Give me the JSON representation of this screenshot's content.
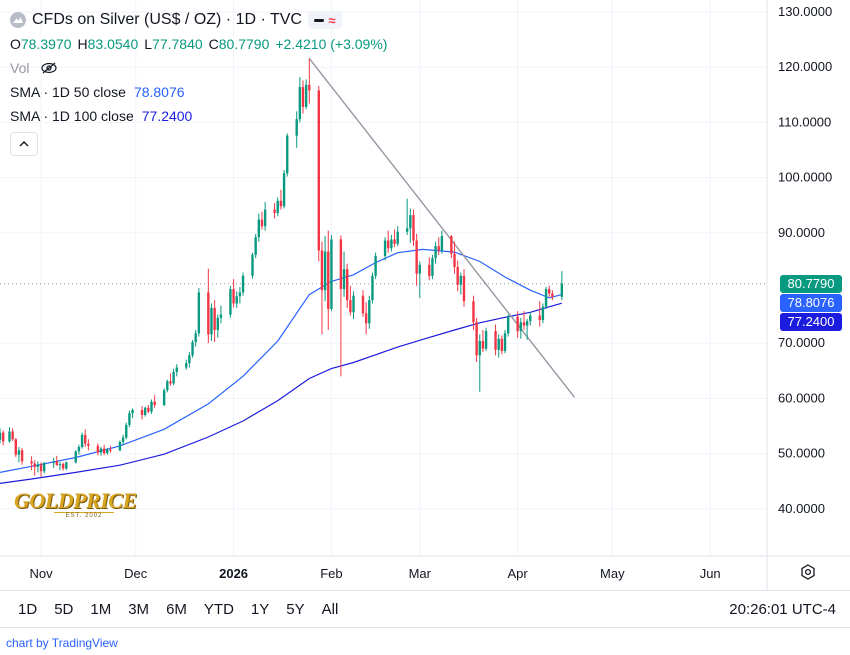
{
  "header": {
    "title": "CFDs on Silver (US$ / OZ) · 1D · TVC",
    "ohlc": [
      {
        "k": "O",
        "v": "78.3970"
      },
      {
        "k": "H",
        "v": "83.0540"
      },
      {
        "k": "L",
        "v": "77.7840"
      },
      {
        "k": "C",
        "v": "80.7790"
      },
      {
        "k": "",
        "v": "+2.4210 (+3.09%)"
      }
    ],
    "volume_label": "Vol",
    "sma50_label": "SMA · 1D 50 close",
    "sma50_value": "78.8076",
    "sma100_label": "SMA · 1D 100 close",
    "sma100_value": "77.2400",
    "icons": [
      "chart-logo-icon",
      "line-style-icon",
      "eye-off-icon",
      "chevron-up-icon"
    ]
  },
  "price_tags": {
    "close": "80.7790",
    "sma50": "78.8076",
    "sma100": "77.2400",
    "close_color": "#089981",
    "sma50_color": "#2962ff",
    "sma100_color": "#1c1cde"
  },
  "logo": {
    "main": "GOLDPRICE",
    "sub": "EST. 2002"
  },
  "toolbar": {
    "ranges": [
      "1D",
      "5D",
      "1M",
      "3M",
      "6M",
      "YTD",
      "1Y",
      "5Y",
      "All"
    ],
    "time": "20:26:01 UTC-4"
  },
  "footer": {
    "text": "chart by TradingView"
  },
  "chart_data": {
    "type": "candlestick",
    "title": "CFDs on Silver (US$ / OZ) · 1D · TVC",
    "y_ticks": [
      "130.0000",
      "120.0000",
      "110.0000",
      "100.0000",
      "90.0000",
      "70.0000",
      "60.0000",
      "50.0000",
      "40.0000"
    ],
    "ylim": [
      35,
      131
    ],
    "x_ticks": [
      {
        "label": "Nov",
        "day": 9
      },
      {
        "label": "Dec",
        "day": 39
      },
      {
        "label": "2026",
        "day": 70,
        "bold": true
      },
      {
        "label": "Feb",
        "day": 101
      },
      {
        "label": "Mar",
        "day": 129
      },
      {
        "label": "Apr",
        "day": 160
      },
      {
        "label": "May",
        "day": 190
      },
      {
        "label": "Jun",
        "day": 221
      }
    ],
    "xlim": [
      -4,
      239
    ],
    "grid": true,
    "up_color": "#089981",
    "down_color": "#f23645",
    "candles": [
      {
        "day": -4,
        "o": 52.5,
        "h": 54.6,
        "l": 51.8,
        "c": 53.8
      },
      {
        "day": -3,
        "o": 53.8,
        "h": 54.2,
        "l": 51.5,
        "c": 52.2
      },
      {
        "day": -1,
        "o": 52.2,
        "h": 54.8,
        "l": 52.0,
        "c": 54.0
      },
      {
        "day": 0,
        "o": 54.0,
        "h": 54.6,
        "l": 52.3,
        "c": 52.6
      },
      {
        "day": 1,
        "o": 52.6,
        "h": 52.8,
        "l": 49.4,
        "c": 49.8
      },
      {
        "day": 2,
        "o": 49.8,
        "h": 51.2,
        "l": 48.4,
        "c": 50.6
      },
      {
        "day": 3,
        "o": 50.6,
        "h": 51.0,
        "l": 48.0,
        "c": 48.6
      },
      {
        "day": 6,
        "o": 48.6,
        "h": 49.5,
        "l": 47.0,
        "c": 48.2
      },
      {
        "day": 7,
        "o": 48.2,
        "h": 48.8,
        "l": 46.0,
        "c": 47.6
      },
      {
        "day": 8,
        "o": 47.6,
        "h": 48.6,
        "l": 46.6,
        "c": 48.0
      },
      {
        "day": 9,
        "o": 48.0,
        "h": 48.4,
        "l": 45.8,
        "c": 46.8
      },
      {
        "day": 10,
        "o": 46.8,
        "h": 48.5,
        "l": 46.4,
        "c": 48.3
      },
      {
        "day": 13,
        "o": 48.3,
        "h": 49.2,
        "l": 47.4,
        "c": 48.6
      },
      {
        "day": 14,
        "o": 48.6,
        "h": 49.6,
        "l": 47.8,
        "c": 47.9
      },
      {
        "day": 15,
        "o": 47.9,
        "h": 48.5,
        "l": 47.0,
        "c": 48.1
      },
      {
        "day": 16,
        "o": 48.1,
        "h": 48.4,
        "l": 46.9,
        "c": 47.3
      },
      {
        "day": 17,
        "o": 47.3,
        "h": 48.6,
        "l": 47.0,
        "c": 48.4
      },
      {
        "day": 20,
        "o": 48.4,
        "h": 50.6,
        "l": 48.2,
        "c": 50.4
      },
      {
        "day": 21,
        "o": 50.4,
        "h": 51.6,
        "l": 49.8,
        "c": 51.2
      },
      {
        "day": 22,
        "o": 51.2,
        "h": 53.8,
        "l": 50.9,
        "c": 53.4
      },
      {
        "day": 23,
        "o": 53.4,
        "h": 54.4,
        "l": 51.2,
        "c": 51.8
      },
      {
        "day": 24,
        "o": 51.8,
        "h": 52.6,
        "l": 50.6,
        "c": 51.4
      },
      {
        "day": 27,
        "o": 51.4,
        "h": 51.8,
        "l": 49.7,
        "c": 50.2
      },
      {
        "day": 28,
        "o": 50.2,
        "h": 51.2,
        "l": 49.6,
        "c": 50.9
      },
      {
        "day": 29,
        "o": 50.9,
        "h": 51.6,
        "l": 49.7,
        "c": 50.1
      },
      {
        "day": 30,
        "o": 50.1,
        "h": 51.0,
        "l": 49.8,
        "c": 50.7
      },
      {
        "day": 31,
        "o": 50.7,
        "h": 51.4,
        "l": 50.2,
        "c": 50.6
      },
      {
        "day": 34,
        "o": 50.6,
        "h": 52.4,
        "l": 50.4,
        "c": 52.1
      },
      {
        "day": 35,
        "o": 52.1,
        "h": 53.4,
        "l": 51.6,
        "c": 52.9
      },
      {
        "day": 36,
        "o": 52.9,
        "h": 55.6,
        "l": 52.6,
        "c": 55.2
      },
      {
        "day": 37,
        "o": 55.2,
        "h": 57.8,
        "l": 54.8,
        "c": 57.3
      },
      {
        "day": 38,
        "o": 57.3,
        "h": 58.2,
        "l": 56.4,
        "c": 57.9
      },
      {
        "day": 41,
        "o": 57.9,
        "h": 58.6,
        "l": 56.2,
        "c": 57.0
      },
      {
        "day": 42,
        "o": 57.0,
        "h": 58.5,
        "l": 56.7,
        "c": 58.3
      },
      {
        "day": 43,
        "o": 58.3,
        "h": 58.8,
        "l": 57.3,
        "c": 57.6
      },
      {
        "day": 44,
        "o": 57.6,
        "h": 59.8,
        "l": 57.2,
        "c": 59.4
      },
      {
        "day": 45,
        "o": 59.4,
        "h": 60.6,
        "l": 58.3,
        "c": 58.8
      },
      {
        "day": 48,
        "o": 58.8,
        "h": 61.8,
        "l": 58.6,
        "c": 61.5
      },
      {
        "day": 49,
        "o": 61.5,
        "h": 63.4,
        "l": 61.1,
        "c": 63.1
      },
      {
        "day": 50,
        "o": 63.1,
        "h": 64.5,
        "l": 62.3,
        "c": 62.7
      },
      {
        "day": 51,
        "o": 62.7,
        "h": 65.4,
        "l": 62.4,
        "c": 64.8
      },
      {
        "day": 52,
        "o": 64.8,
        "h": 66.2,
        "l": 64.0,
        "c": 65.6
      },
      {
        "day": 55,
        "o": 65.6,
        "h": 67.0,
        "l": 65.2,
        "c": 66.4
      },
      {
        "day": 56,
        "o": 66.4,
        "h": 68.4,
        "l": 65.6,
        "c": 67.8
      },
      {
        "day": 57,
        "o": 67.8,
        "h": 70.6,
        "l": 67.4,
        "c": 70.2
      },
      {
        "day": 58,
        "o": 70.2,
        "h": 72.4,
        "l": 69.4,
        "c": 71.8
      },
      {
        "day": 59,
        "o": 71.8,
        "h": 80.0,
        "l": 71.2,
        "c": 79.2
      },
      {
        "day": 62,
        "o": 79.2,
        "h": 83.5,
        "l": 70.0,
        "c": 71.6
      },
      {
        "day": 63,
        "o": 71.6,
        "h": 77.2,
        "l": 70.4,
        "c": 76.4
      },
      {
        "day": 64,
        "o": 76.4,
        "h": 77.8,
        "l": 70.2,
        "c": 72.4
      },
      {
        "day": 65,
        "o": 72.4,
        "h": 75.2,
        "l": 71.0,
        "c": 74.6
      },
      {
        "day": 66,
        "o": 74.6,
        "h": 76.8,
        "l": 73.6,
        "c": 75.2
      },
      {
        "day": 69,
        "o": 75.2,
        "h": 80.4,
        "l": 74.6,
        "c": 79.8
      },
      {
        "day": 70,
        "o": 79.8,
        "h": 81.6,
        "l": 76.5,
        "c": 77.2
      },
      {
        "day": 71,
        "o": 77.2,
        "h": 79.4,
        "l": 76.4,
        "c": 78.5
      },
      {
        "day": 72,
        "o": 78.5,
        "h": 80.2,
        "l": 77.2,
        "c": 79.2
      },
      {
        "day": 73,
        "o": 79.2,
        "h": 82.8,
        "l": 78.6,
        "c": 82.2
      },
      {
        "day": 76,
        "o": 82.2,
        "h": 86.4,
        "l": 81.7,
        "c": 86.0
      },
      {
        "day": 77,
        "o": 86.0,
        "h": 89.8,
        "l": 85.4,
        "c": 89.2
      },
      {
        "day": 78,
        "o": 89.2,
        "h": 93.5,
        "l": 88.4,
        "c": 92.4
      },
      {
        "day": 79,
        "o": 92.4,
        "h": 93.8,
        "l": 90.6,
        "c": 91.2
      },
      {
        "day": 80,
        "o": 91.2,
        "h": 95.6,
        "l": 90.4,
        "c": 94.2
      },
      {
        "day": 83,
        "o": 94.2,
        "h": 95.4,
        "l": 92.6,
        "c": 93.6
      },
      {
        "day": 84,
        "o": 93.6,
        "h": 96.4,
        "l": 93.0,
        "c": 95.8
      },
      {
        "day": 85,
        "o": 95.8,
        "h": 97.8,
        "l": 94.2,
        "c": 94.8
      },
      {
        "day": 86,
        "o": 94.8,
        "h": 101.4,
        "l": 94.4,
        "c": 100.8
      },
      {
        "day": 87,
        "o": 100.8,
        "h": 108.0,
        "l": 100.2,
        "c": 107.6
      },
      {
        "day": 90,
        "o": 107.6,
        "h": 112.0,
        "l": 105.4,
        "c": 110.6
      },
      {
        "day": 91,
        "o": 110.6,
        "h": 118.2,
        "l": 110.0,
        "c": 116.4
      },
      {
        "day": 92,
        "o": 116.4,
        "h": 117.6,
        "l": 111.6,
        "c": 112.8
      },
      {
        "day": 93,
        "o": 112.8,
        "h": 117.8,
        "l": 112.4,
        "c": 116.8
      },
      {
        "day": 94,
        "o": 116.8,
        "h": 121.6,
        "l": 113.4,
        "c": 115.8
      },
      {
        "day": 97,
        "o": 115.8,
        "h": 116.6,
        "l": 84.8,
        "c": 86.8
      },
      {
        "day": 98,
        "o": 86.8,
        "h": 88.4,
        "l": 71.6,
        "c": 79.6
      },
      {
        "day": 99,
        "o": 79.6,
        "h": 89.4,
        "l": 77.6,
        "c": 86.6
      },
      {
        "day": 100,
        "o": 86.6,
        "h": 90.4,
        "l": 72.4,
        "c": 76.2
      },
      {
        "day": 101,
        "o": 76.2,
        "h": 89.6,
        "l": 75.8,
        "c": 88.8
      },
      {
        "day": 104,
        "o": 88.8,
        "h": 89.5,
        "l": 64.0,
        "c": 79.8
      },
      {
        "day": 105,
        "o": 79.8,
        "h": 86.6,
        "l": 78.4,
        "c": 83.4
      },
      {
        "day": 106,
        "o": 83.4,
        "h": 84.4,
        "l": 76.4,
        "c": 77.8
      },
      {
        "day": 107,
        "o": 77.8,
        "h": 80.4,
        "l": 75.0,
        "c": 75.6
      },
      {
        "day": 108,
        "o": 75.6,
        "h": 79.4,
        "l": 74.4,
        "c": 78.6
      },
      {
        "day": 111,
        "o": 78.6,
        "h": 79.6,
        "l": 74.8,
        "c": 75.4
      },
      {
        "day": 112,
        "o": 75.4,
        "h": 77.4,
        "l": 71.6,
        "c": 73.6
      },
      {
        "day": 113,
        "o": 73.6,
        "h": 78.6,
        "l": 72.6,
        "c": 77.8
      },
      {
        "day": 114,
        "o": 77.8,
        "h": 82.8,
        "l": 77.2,
        "c": 82.2
      },
      {
        "day": 115,
        "o": 82.2,
        "h": 86.4,
        "l": 81.6,
        "c": 85.8
      },
      {
        "day": 118,
        "o": 85.8,
        "h": 89.2,
        "l": 85.0,
        "c": 88.6
      },
      {
        "day": 119,
        "o": 88.6,
        "h": 90.4,
        "l": 86.4,
        "c": 87.2
      },
      {
        "day": 120,
        "o": 87.2,
        "h": 89.6,
        "l": 86.6,
        "c": 88.8
      },
      {
        "day": 121,
        "o": 88.8,
        "h": 90.6,
        "l": 87.4,
        "c": 88.0
      },
      {
        "day": 122,
        "o": 88.0,
        "h": 91.2,
        "l": 87.6,
        "c": 90.2
      },
      {
        "day": 125,
        "o": 90.2,
        "h": 96.2,
        "l": 89.6,
        "c": 90.8
      },
      {
        "day": 126,
        "o": 90.8,
        "h": 94.4,
        "l": 88.2,
        "c": 93.2
      },
      {
        "day": 127,
        "o": 93.2,
        "h": 94.2,
        "l": 87.6,
        "c": 88.6
      },
      {
        "day": 128,
        "o": 88.6,
        "h": 89.8,
        "l": 80.4,
        "c": 82.6
      },
      {
        "day": 129,
        "o": 82.6,
        "h": 84.8,
        "l": 78.2,
        "c": 84.2
      },
      {
        "day": 132,
        "o": 84.2,
        "h": 85.6,
        "l": 81.4,
        "c": 82.2
      },
      {
        "day": 133,
        "o": 82.2,
        "h": 86.0,
        "l": 81.6,
        "c": 85.4
      },
      {
        "day": 134,
        "o": 85.4,
        "h": 88.4,
        "l": 84.4,
        "c": 87.6
      },
      {
        "day": 135,
        "o": 87.6,
        "h": 89.2,
        "l": 86.0,
        "c": 86.8
      },
      {
        "day": 136,
        "o": 86.8,
        "h": 90.4,
        "l": 86.2,
        "c": 89.4
      },
      {
        "day": 139,
        "o": 89.4,
        "h": 89.6,
        "l": 85.4,
        "c": 86.2
      },
      {
        "day": 140,
        "o": 86.2,
        "h": 88.4,
        "l": 82.6,
        "c": 83.8
      },
      {
        "day": 141,
        "o": 83.8,
        "h": 85.0,
        "l": 79.4,
        "c": 80.6
      },
      {
        "day": 142,
        "o": 80.6,
        "h": 82.8,
        "l": 78.8,
        "c": 82.2
      },
      {
        "day": 143,
        "o": 82.2,
        "h": 83.4,
        "l": 76.6,
        "c": 77.6
      },
      {
        "day": 146,
        "o": 77.6,
        "h": 78.6,
        "l": 72.4,
        "c": 73.8
      },
      {
        "day": 147,
        "o": 73.8,
        "h": 74.6,
        "l": 66.6,
        "c": 67.8
      },
      {
        "day": 148,
        "o": 67.8,
        "h": 71.6,
        "l": 61.2,
        "c": 70.4
      },
      {
        "day": 149,
        "o": 70.4,
        "h": 72.4,
        "l": 68.4,
        "c": 69.0
      },
      {
        "day": 150,
        "o": 69.0,
        "h": 72.8,
        "l": 68.6,
        "c": 72.2
      },
      {
        "day": 153,
        "o": 72.2,
        "h": 73.4,
        "l": 67.8,
        "c": 68.8
      },
      {
        "day": 154,
        "o": 68.8,
        "h": 71.6,
        "l": 67.4,
        "c": 70.8
      },
      {
        "day": 155,
        "o": 70.8,
        "h": 71.4,
        "l": 68.0,
        "c": 68.6
      },
      {
        "day": 156,
        "o": 68.6,
        "h": 72.4,
        "l": 68.2,
        "c": 71.8
      },
      {
        "day": 157,
        "o": 71.8,
        "h": 75.2,
        "l": 71.2,
        "c": 74.8
      },
      {
        "day": 160,
        "o": 74.8,
        "h": 75.8,
        "l": 71.0,
        "c": 72.2
      },
      {
        "day": 161,
        "o": 72.2,
        "h": 74.6,
        "l": 70.8,
        "c": 73.8
      },
      {
        "day": 162,
        "o": 73.8,
        "h": 75.8,
        "l": 72.4,
        "c": 73.2
      },
      {
        "day": 163,
        "o": 73.2,
        "h": 74.4,
        "l": 70.6,
        "c": 74.0
      },
      {
        "day": 164,
        "o": 74.0,
        "h": 75.6,
        "l": 73.2,
        "c": 75.0
      },
      {
        "day": 167,
        "o": 75.0,
        "h": 77.6,
        "l": 73.0,
        "c": 74.2
      },
      {
        "day": 168,
        "o": 74.2,
        "h": 77.2,
        "l": 73.6,
        "c": 76.6
      },
      {
        "day": 169,
        "o": 76.6,
        "h": 80.2,
        "l": 76.2,
        "c": 79.8
      },
      {
        "day": 170,
        "o": 79.8,
        "h": 80.4,
        "l": 78.4,
        "c": 79.0
      },
      {
        "day": 171,
        "o": 79.0,
        "h": 79.6,
        "l": 77.8,
        "c": 78.4
      },
      {
        "day": 174,
        "o": 78.4,
        "h": 83.05,
        "l": 77.78,
        "c": 80.78
      }
    ],
    "sma50": [
      [
        -4,
        46.6
      ],
      [
        6,
        47.7
      ],
      [
        20,
        49.3
      ],
      [
        34,
        51.4
      ],
      [
        48,
        54.4
      ],
      [
        62,
        59.0
      ],
      [
        73,
        64.0
      ],
      [
        84,
        70.4
      ],
      [
        94,
        78.8
      ],
      [
        101,
        81.2
      ],
      [
        108,
        82.4
      ],
      [
        115,
        84.6
      ],
      [
        122,
        86.4
      ],
      [
        130,
        87.0
      ],
      [
        140,
        86.5
      ],
      [
        148,
        84.8
      ],
      [
        156,
        82.0
      ],
      [
        164,
        79.6
      ],
      [
        170,
        78.2
      ],
      [
        174,
        78.81
      ]
    ],
    "sma100": [
      [
        -4,
        44.6
      ],
      [
        6,
        45.4
      ],
      [
        20,
        46.6
      ],
      [
        34,
        47.9
      ],
      [
        48,
        49.9
      ],
      [
        62,
        53.0
      ],
      [
        73,
        55.9
      ],
      [
        84,
        59.6
      ],
      [
        94,
        63.6
      ],
      [
        101,
        65.4
      ],
      [
        108,
        66.5
      ],
      [
        115,
        67.9
      ],
      [
        122,
        69.3
      ],
      [
        130,
        70.7
      ],
      [
        140,
        72.4
      ],
      [
        148,
        73.7
      ],
      [
        156,
        74.7
      ],
      [
        164,
        75.6
      ],
      [
        170,
        76.6
      ],
      [
        174,
        77.24
      ]
    ],
    "trendline": [
      [
        94,
        121.6
      ],
      [
        178,
        60.2
      ]
    ],
    "last_price_line": 80.78
  }
}
